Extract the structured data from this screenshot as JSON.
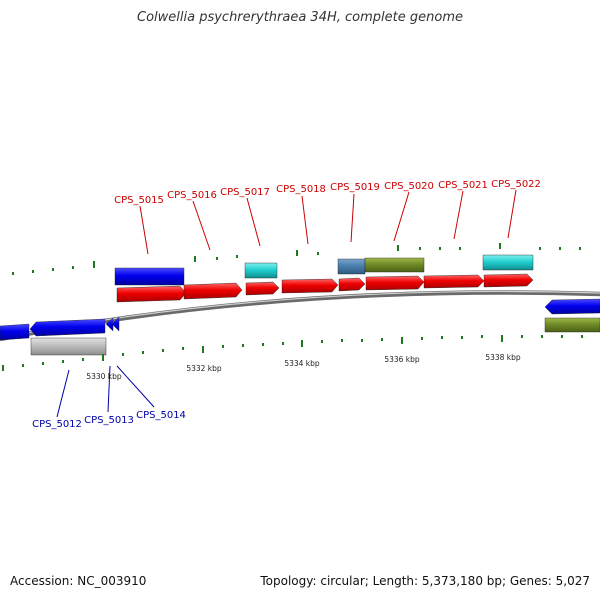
{
  "title": "Colwellia psychrerythraea 34H, complete genome",
  "footer": {
    "accession": "Accession: NC_003910",
    "summary": "Topology: circular; Length: 5,373,180 bp; Genes: 5,027"
  },
  "colors": {
    "backbone": "#888888",
    "forward_label": "#cc0000",
    "reverse_label": "#0000aa",
    "tick": "#1e7a1e"
  },
  "scale_labels": [
    "5330 kbp",
    "5332 kbp",
    "5334 kbp",
    "5336 kbp",
    "5338 kbp"
  ],
  "forward_gene_labels": [
    "CPS_5015",
    "CPS_5016",
    "CPS_5017",
    "CPS_5018",
    "CPS_5019",
    "CPS_5020",
    "CPS_5021",
    "CPS_5022"
  ],
  "reverse_gene_labels": [
    "CPS_5012",
    "CPS_5013",
    "CPS_5014"
  ]
}
